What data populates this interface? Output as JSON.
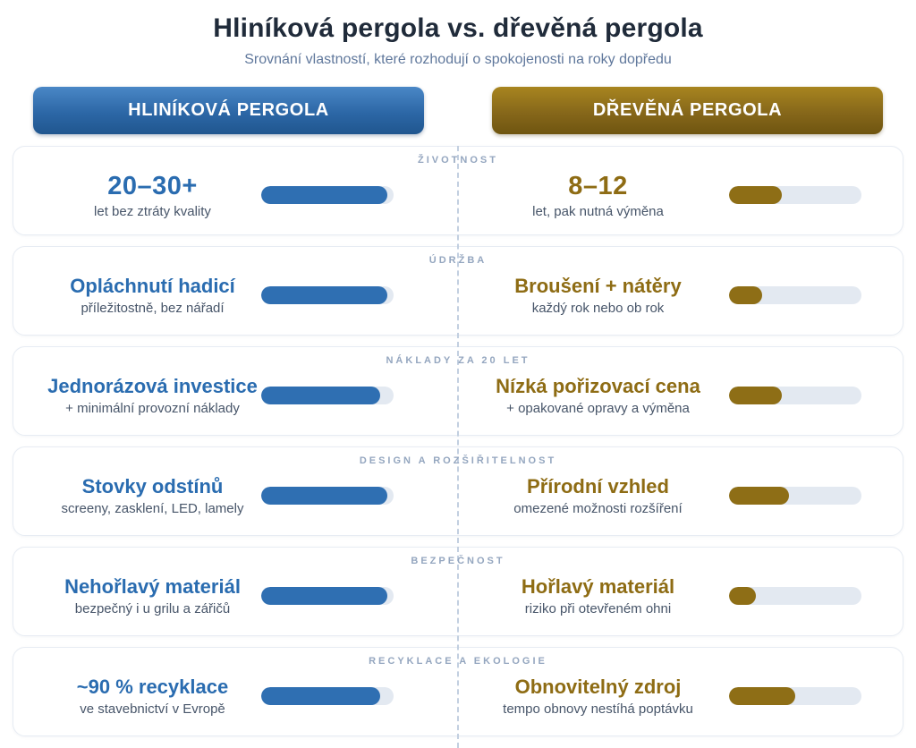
{
  "header": {
    "title": "Hliníková pergola vs. dřevěná pergola",
    "subtitle": "Srovnání vlastností, které rozhodují o spokojenosti na roky dopředu"
  },
  "buttons": {
    "left_label": "HLINÍKOVÁ PERGOLA",
    "right_label": "DŘEVĚNÁ PERGOLA"
  },
  "colors": {
    "blue_accent": "#2f6fb2",
    "gold_accent": "#8e6e16",
    "blue_button_gradient": [
      "#4a87c6",
      "#20568f"
    ],
    "gold_button_gradient": [
      "#a8851f",
      "#6f5510"
    ],
    "bar_track": "#e3e9f1",
    "category_label": "#94a6bf",
    "divider_dashed": "#c2cfe0",
    "title_text": "#202b3a",
    "subtitle_text": "#60789c",
    "sub_text": "#475569"
  },
  "rows": [
    {
      "category": "ŽIVOTNOST",
      "left": {
        "value": "20–30+",
        "sub": "let bez ztráty kvality",
        "pct": 95
      },
      "right": {
        "value": "8–12",
        "sub": "let, pak nutná výměna",
        "pct": 40
      }
    },
    {
      "category": "ÚDRŽBA",
      "left": {
        "value": "Opláchnutí hadicí",
        "sub": "příležitostně, bez nářadí",
        "pct": 95
      },
      "right": {
        "value": "Broušení + nátěry",
        "sub": "každý rok nebo ob rok",
        "pct": 25
      }
    },
    {
      "category": "NÁKLADY ZA 20 LET",
      "left": {
        "value": "Jednorázová investice",
        "sub": "+ minimální provozní náklady",
        "pct": 90
      },
      "right": {
        "value": "Nízká pořizovací cena",
        "sub": "+ opakované opravy a výměna",
        "pct": 40
      }
    },
    {
      "category": "DESIGN A ROZŠIŘITELNOST",
      "left": {
        "value": "Stovky odstínů",
        "sub": "screeny, zasklení, LED, lamely",
        "pct": 95
      },
      "right": {
        "value": "Přírodní vzhled",
        "sub": "omezené možnosti rozšíření",
        "pct": 45
      }
    },
    {
      "category": "BEZPEČNOST",
      "left": {
        "value": "Nehořlavý materiál",
        "sub": "bezpečný i u grilu a zářičů",
        "pct": 95
      },
      "right": {
        "value": "Hořlavý materiál",
        "sub": "riziko při otevřeném ohni",
        "pct": 20
      }
    },
    {
      "category": "RECYKLACE A EKOLOGIE",
      "left": {
        "value": "~90 % recyklace",
        "sub": "ve stavebnictví v Evropě",
        "pct": 90
      },
      "right": {
        "value": "Obnovitelný zdroj",
        "sub": "tempo obnovy nestíhá poptávku",
        "pct": 50
      }
    }
  ],
  "chart_data": {
    "type": "bar",
    "variant": "horizontal-comparison-infographic",
    "title": "Hliníková pergola vs. dřevěná pergola",
    "subtitle": "Srovnání vlastností, které rozhodují o spokojenosti na roky dopředu",
    "categories": [
      "ŽIVOTNOST",
      "ÚDRŽBA",
      "NÁKLADY ZA 20 LET",
      "DESIGN A ROZŠIŘITELNOST",
      "BEZPEČNOST",
      "RECYKLACE A EKOLOGIE"
    ],
    "series": [
      {
        "name": "HLINÍKOVÁ PERGOLA",
        "color": "#2f6fb2",
        "values": [
          95,
          95,
          90,
          95,
          95,
          90
        ],
        "labels": [
          "20–30+",
          "Opláchnutí hadicí",
          "Jednorázová investice",
          "Stovky odstínů",
          "Nehořlavý materiál",
          "~90 % recyklace"
        ],
        "sublabels": [
          "let bez ztráty kvality",
          "příležitostně, bez nářadí",
          "+ minimální provozní náklady",
          "screeny, zasklení, LED, lamely",
          "bezpečný i u grilu a zářičů",
          "ve stavebnictví v Evropě"
        ]
      },
      {
        "name": "DŘEVĚNÁ PERGOLA",
        "color": "#8e6e16",
        "values": [
          40,
          25,
          40,
          45,
          20,
          50
        ],
        "labels": [
          "8–12",
          "Broušení + nátěry",
          "Nízká pořizovací cena",
          "Přírodní vzhled",
          "Hořlavý materiál",
          "Obnovitelný zdroj"
        ],
        "sublabels": [
          "let, pak nutná výměna",
          "každý rok nebo ob rok",
          "+ opakované opravy a výměna",
          "omezené možnosti rozšíření",
          "riziko při otevřeném ohni",
          "tempo obnovy nestíhá poptávku"
        ]
      }
    ],
    "xlim": [
      0,
      100
    ],
    "value_unit": "relative rating percent (bar fill, unlabeled)",
    "grid": false,
    "legend_position": "top (as two pill headers)"
  }
}
